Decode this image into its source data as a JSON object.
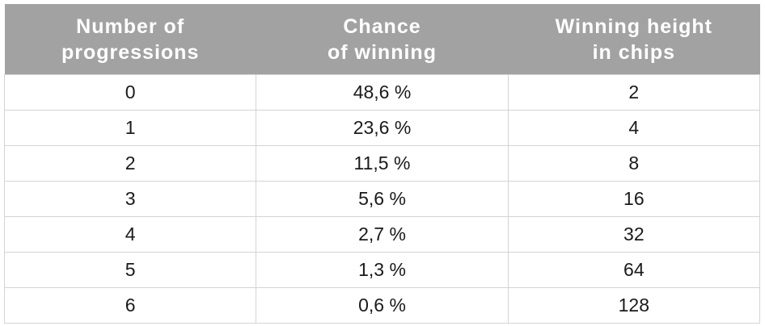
{
  "table": {
    "header": [
      [
        "Number of",
        "progressions"
      ],
      [
        "Chance",
        "of winning"
      ],
      [
        "Winning height",
        "in chips"
      ]
    ],
    "rows": [
      [
        "0",
        "48,6 %",
        "2"
      ],
      [
        "1",
        "23,6 %",
        "4"
      ],
      [
        "2",
        "11,5 %",
        "8"
      ],
      [
        "3",
        "5,6 %",
        "16"
      ],
      [
        "4",
        "2,7 %",
        "32"
      ],
      [
        "5",
        "1,3 %",
        "64"
      ],
      [
        "6",
        "0,6 %",
        "128"
      ]
    ]
  }
}
